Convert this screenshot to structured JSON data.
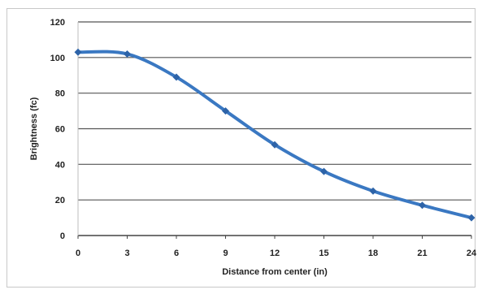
{
  "chart_data": {
    "type": "line",
    "title": "",
    "xlabel": "Distance from center (in)",
    "ylabel": "Brightness (fc)",
    "x": [
      0,
      3,
      6,
      9,
      12,
      15,
      18,
      21,
      24
    ],
    "x_ticks": [
      "0",
      "3",
      "6",
      "9",
      "12",
      "15",
      "18",
      "21",
      "24"
    ],
    "y_ticks": [
      "0",
      "20",
      "40",
      "60",
      "80",
      "100",
      "120"
    ],
    "xlim": [
      0,
      24
    ],
    "ylim": [
      0,
      120
    ],
    "grid": "horizontal",
    "legend": "none",
    "smooth": true,
    "series": [
      {
        "values": [
          103,
          102,
          89,
          70,
          51,
          36,
          25,
          17,
          10
        ]
      }
    ],
    "colors": {
      "line": "#3a78c2",
      "marker": "#2d63a8",
      "grid": "#555555",
      "axis": "#444444"
    }
  }
}
